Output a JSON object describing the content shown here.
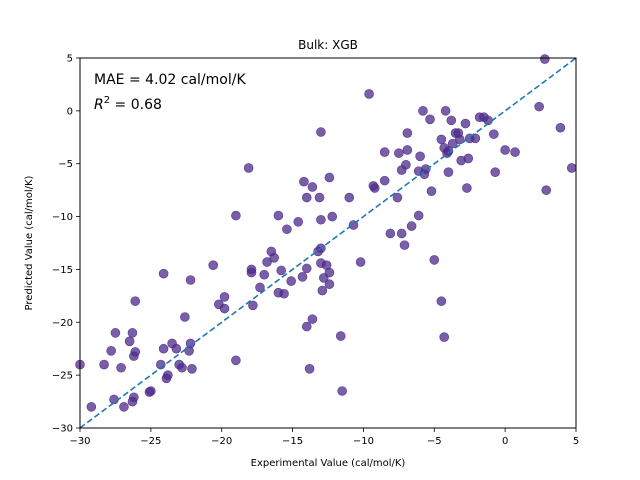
{
  "chart_data": {
    "type": "scatter",
    "title": "Bulk: XGB",
    "xlabel": "Experimental Value (cal/mol/K)",
    "ylabel": "Predicted Value (cal/mol/K)",
    "xlim": [
      -30,
      5
    ],
    "ylim": [
      -30,
      5
    ],
    "xticks": [
      -30,
      -25,
      -20,
      -15,
      -10,
      -5,
      0,
      5
    ],
    "yticks": [
      -30,
      -25,
      -20,
      -15,
      -10,
      -5,
      0,
      5
    ],
    "grid": false,
    "annotations": {
      "mae": "MAE = 4.02 cal/mol/K",
      "r2_prefix": "R",
      "r2_sup": "2",
      "r2_value": " = 0.68"
    },
    "marker_color": "#4b2a8a",
    "marker_alpha": 0.75,
    "reference_line": {
      "style": "dashed",
      "color": "#1f77b4",
      "from": [
        -30,
        -30
      ],
      "to": [
        5,
        5
      ]
    },
    "points": [
      [
        -30,
        -24
      ],
      [
        -29.2,
        -28
      ],
      [
        -28.3,
        -24
      ],
      [
        -27.8,
        -22.7
      ],
      [
        -27.6,
        -27.3
      ],
      [
        -27.5,
        -21
      ],
      [
        -27.1,
        -24.3
      ],
      [
        -26.9,
        -28
      ],
      [
        -26.5,
        -21.8
      ],
      [
        -26.3,
        -27.5
      ],
      [
        -26.3,
        -21
      ],
      [
        -26.2,
        -27.1
      ],
      [
        -26.2,
        -23.2
      ],
      [
        -26.1,
        -22.8
      ],
      [
        -26.1,
        -18
      ],
      [
        -25.1,
        -26.6
      ],
      [
        -25,
        -26.5
      ],
      [
        -24.3,
        -24
      ],
      [
        -24.1,
        -22.5
      ],
      [
        -24.1,
        -15.4
      ],
      [
        -23.9,
        -25.3
      ],
      [
        -23.8,
        -25
      ],
      [
        -23.5,
        -22
      ],
      [
        -23.2,
        -22.5
      ],
      [
        -23,
        -24
      ],
      [
        -22.8,
        -24.3
      ],
      [
        -22.6,
        -19.5
      ],
      [
        -22.3,
        -22.7
      ],
      [
        -22.2,
        -22
      ],
      [
        -22.2,
        -16
      ],
      [
        -22.1,
        -24.4
      ],
      [
        -20.6,
        -14.6
      ],
      [
        -20.2,
        -18.3
      ],
      [
        -19.8,
        -18.7
      ],
      [
        -19.8,
        -17.6
      ],
      [
        -19,
        -9.9
      ],
      [
        -19,
        -23.6
      ],
      [
        -18.1,
        -5.4
      ],
      [
        -17.9,
        -15
      ],
      [
        -17.9,
        -15.3
      ],
      [
        -17.8,
        -18.4
      ],
      [
        -17.3,
        -16.7
      ],
      [
        -17,
        -15.5
      ],
      [
        -16.8,
        -14.3
      ],
      [
        -16.5,
        -13.3
      ],
      [
        -16.3,
        -13.9
      ],
      [
        -16,
        -9.9
      ],
      [
        -16,
        -17.2
      ],
      [
        -15.8,
        -15.1
      ],
      [
        -15.6,
        -17.3
      ],
      [
        -15.4,
        -11.2
      ],
      [
        -15.1,
        -16.1
      ],
      [
        -14.6,
        -10.5
      ],
      [
        -14.3,
        -15.7
      ],
      [
        -14.2,
        -6.7
      ],
      [
        -14,
        -14.9
      ],
      [
        -14,
        -20.4
      ],
      [
        -14,
        -8.2
      ],
      [
        -13.8,
        -24.4
      ],
      [
        -13.6,
        -19.7
      ],
      [
        -13.6,
        -7.2
      ],
      [
        -13.2,
        -13.3
      ],
      [
        -13.1,
        -8.2
      ],
      [
        -13,
        -10.3
      ],
      [
        -13,
        -13
      ],
      [
        -13,
        -14.4
      ],
      [
        -13,
        -2
      ],
      [
        -12.9,
        -17
      ],
      [
        -12.8,
        -15.8
      ],
      [
        -12.6,
        -14.6
      ],
      [
        -12.4,
        -15.3
      ],
      [
        -12.4,
        -16.4
      ],
      [
        -12.4,
        -6.3
      ],
      [
        -12.2,
        -10
      ],
      [
        -11.6,
        -21.3
      ],
      [
        -11.5,
        -26.5
      ],
      [
        -11,
        -8.2
      ],
      [
        -10.7,
        -10.8
      ],
      [
        -10.2,
        -14.3
      ],
      [
        -9.6,
        1.6
      ],
      [
        -9.3,
        -7.1
      ],
      [
        -9.2,
        -7.3
      ],
      [
        -8.5,
        -3.9
      ],
      [
        -8.5,
        -6.6
      ],
      [
        -8.1,
        -11.6
      ],
      [
        -7.6,
        -8.2
      ],
      [
        -7.5,
        -4
      ],
      [
        -7.3,
        -5.6
      ],
      [
        -7.3,
        -11.6
      ],
      [
        -7.1,
        -12.7
      ],
      [
        -7,
        -5.1
      ],
      [
        -6.9,
        -3.7
      ],
      [
        -6.9,
        -2.1
      ],
      [
        -6.6,
        -10.9
      ],
      [
        -6.1,
        -9.9
      ],
      [
        -6.1,
        -5.7
      ],
      [
        -6,
        -4.3
      ],
      [
        -5.8,
        0
      ],
      [
        -5.7,
        -6
      ],
      [
        -5.6,
        -5.5
      ],
      [
        -5.3,
        -0.8
      ],
      [
        -5.2,
        -7.6
      ],
      [
        -5,
        -14.1
      ],
      [
        -4.5,
        -2.7
      ],
      [
        -4.5,
        -18
      ],
      [
        -4.3,
        -21.4
      ],
      [
        -4.3,
        -3.5
      ],
      [
        -4.2,
        0
      ],
      [
        -4.1,
        -4
      ],
      [
        -4,
        -5.8
      ],
      [
        -4,
        -3.8
      ],
      [
        -3.8,
        -0.9
      ],
      [
        -3.7,
        -3.1
      ],
      [
        -3.5,
        -2.1
      ],
      [
        -3.3,
        -2.1
      ],
      [
        -3.2,
        -2.7
      ],
      [
        -3.1,
        -4.7
      ],
      [
        -2.8,
        -1.2
      ],
      [
        -2.7,
        -7.3
      ],
      [
        -2.6,
        -4.5
      ],
      [
        -2.5,
        -2.6
      ],
      [
        -2.1,
        -2.6
      ],
      [
        -1.8,
        -0.6
      ],
      [
        -1.5,
        -0.6
      ],
      [
        -1.2,
        -0.9
      ],
      [
        -0.8,
        -2.2
      ],
      [
        -0.7,
        -5.8
      ],
      [
        0,
        -3.7
      ],
      [
        0.7,
        -3.9
      ],
      [
        2.4,
        0.4
      ],
      [
        2.8,
        4.9
      ],
      [
        2.9,
        -7.5
      ],
      [
        3.9,
        -1.6
      ],
      [
        4.7,
        -5.4
      ]
    ]
  }
}
